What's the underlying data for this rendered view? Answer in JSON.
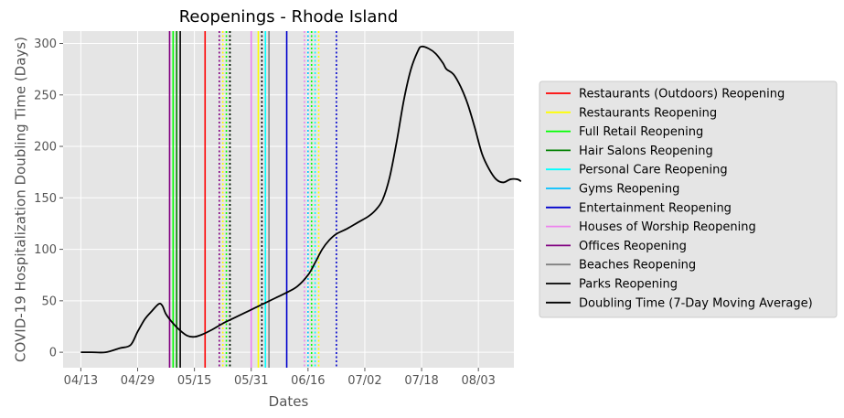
{
  "chart_data": {
    "type": "line",
    "title": "Reopenings - Rhode Island",
    "xlabel": "Dates",
    "ylabel": "COVID-19 Hospitalization Doubling Time (Days)",
    "x_type": "date",
    "xlim": [
      "2020-04-08",
      "2020-08-13"
    ],
    "ylim": [
      -15,
      312
    ],
    "x_ticks": [
      "2020-04-13",
      "2020-04-29",
      "2020-05-15",
      "2020-05-31",
      "2020-06-16",
      "2020-07-02",
      "2020-07-18",
      "2020-08-03"
    ],
    "x_tick_labels": [
      "04/13",
      "04/29",
      "05/15",
      "05/31",
      "06/16",
      "07/02",
      "07/18",
      "08/03"
    ],
    "y_ticks": [
      0,
      50,
      100,
      150,
      200,
      250,
      300
    ],
    "y_tick_labels": [
      "0",
      "50",
      "100",
      "150",
      "200",
      "250",
      "300"
    ],
    "grid": true,
    "legend_position": "right",
    "background_color": "#e5e5e5",
    "series": [
      {
        "name": "Doubling Time (7-Day Moving Average)",
        "color": "#000000",
        "points": [
          [
            "2020-04-13",
            0
          ],
          [
            "2020-04-16",
            0
          ],
          [
            "2020-04-20",
            0
          ],
          [
            "2020-04-24",
            4
          ],
          [
            "2020-04-27",
            7
          ],
          [
            "2020-04-29",
            20
          ],
          [
            "2020-05-01",
            32
          ],
          [
            "2020-05-03",
            40
          ],
          [
            "2020-05-05",
            47
          ],
          [
            "2020-05-06",
            45
          ],
          [
            "2020-05-07",
            37
          ],
          [
            "2020-05-09",
            28
          ],
          [
            "2020-05-11",
            21
          ],
          [
            "2020-05-13",
            16
          ],
          [
            "2020-05-15",
            15
          ],
          [
            "2020-05-17",
            17
          ],
          [
            "2020-05-20",
            22
          ],
          [
            "2020-05-23",
            28
          ],
          [
            "2020-05-26",
            33
          ],
          [
            "2020-05-29",
            38
          ],
          [
            "2020-06-01",
            43
          ],
          [
            "2020-06-04",
            48
          ],
          [
            "2020-06-07",
            53
          ],
          [
            "2020-06-10",
            58
          ],
          [
            "2020-06-13",
            64
          ],
          [
            "2020-06-16",
            75
          ],
          [
            "2020-06-18",
            87
          ],
          [
            "2020-06-20",
            100
          ],
          [
            "2020-06-22",
            109
          ],
          [
            "2020-06-24",
            115
          ],
          [
            "2020-06-27",
            120
          ],
          [
            "2020-06-30",
            126
          ],
          [
            "2020-07-03",
            132
          ],
          [
            "2020-07-05",
            138
          ],
          [
            "2020-07-07",
            148
          ],
          [
            "2020-07-09",
            170
          ],
          [
            "2020-07-11",
            205
          ],
          [
            "2020-07-13",
            245
          ],
          [
            "2020-07-15",
            275
          ],
          [
            "2020-07-17",
            293
          ],
          [
            "2020-07-18",
            297
          ],
          [
            "2020-07-20",
            295
          ],
          [
            "2020-07-22",
            290
          ],
          [
            "2020-07-24",
            281
          ],
          [
            "2020-07-25",
            275
          ],
          [
            "2020-07-27",
            270
          ],
          [
            "2020-07-29",
            258
          ],
          [
            "2020-07-31",
            241
          ],
          [
            "2020-08-02",
            218
          ],
          [
            "2020-08-04",
            193
          ],
          [
            "2020-08-06",
            178
          ],
          [
            "2020-08-08",
            168
          ],
          [
            "2020-08-10",
            165
          ],
          [
            "2020-08-12",
            168
          ],
          [
            "2020-08-14",
            168
          ],
          [
            "2020-08-15",
            166
          ]
        ]
      }
    ],
    "reopenings": [
      {
        "name": "Restaurants (Outdoors) Reopening",
        "color": "#ff0000",
        "dates": [
          "2020-05-18"
        ],
        "dotted_dates": []
      },
      {
        "name": "Restaurants Reopening",
        "color": "#ffff00",
        "dates": [
          "2020-06-02"
        ],
        "dotted_dates": [
          "2020-05-23",
          "2020-06-19"
        ]
      },
      {
        "name": "Full Retail Reopening",
        "color": "#00ff00",
        "dates": [
          "2020-05-09"
        ],
        "dotted_dates": [
          "2020-05-24",
          "2020-06-17"
        ]
      },
      {
        "name": "Hair Salons Reopening",
        "color": "#008000",
        "dates": [
          "2020-05-10"
        ],
        "dotted_dates": [
          "2020-05-25"
        ]
      },
      {
        "name": "Personal Care Reopening",
        "color": "#00ffff",
        "dates": [
          "2020-06-04"
        ],
        "dotted_dates": [
          "2020-06-18"
        ]
      },
      {
        "name": "Gyms Reopening",
        "color": "#00bfff",
        "dates": [],
        "dotted_dates": [
          "2020-06-16"
        ]
      },
      {
        "name": "Entertainment Reopening",
        "color": "#0000cd",
        "dates": [
          "2020-06-10"
        ],
        "dotted_dates": [
          "2020-06-24"
        ]
      },
      {
        "name": "Houses of Worship Reopening",
        "color": "#ee82ee",
        "dates": [
          "2020-05-31"
        ],
        "dotted_dates": [
          "2020-06-15"
        ]
      },
      {
        "name": "Offices Reopening",
        "color": "#800080",
        "dates": [
          "2020-05-08"
        ],
        "dotted_dates": [
          "2020-05-22"
        ]
      },
      {
        "name": "Beaches Reopening",
        "color": "#808080",
        "dates": [
          "2020-06-05"
        ],
        "dotted_dates": []
      },
      {
        "name": "Parks Reopening",
        "color": "#000000",
        "dates": [
          "2020-05-11"
        ],
        "dotted_dates": [
          "2020-05-25",
          "2020-06-03"
        ]
      }
    ],
    "legend": [
      {
        "label": "Restaurants (Outdoors) Reopening",
        "color": "#ff0000"
      },
      {
        "label": "Restaurants Reopening",
        "color": "#ffff00"
      },
      {
        "label": "Full Retail Reopening",
        "color": "#00ff00"
      },
      {
        "label": "Hair Salons Reopening",
        "color": "#008000"
      },
      {
        "label": "Personal Care Reopening",
        "color": "#00ffff"
      },
      {
        "label": "Gyms Reopening",
        "color": "#00bfff"
      },
      {
        "label": "Entertainment Reopening",
        "color": "#0000cd"
      },
      {
        "label": "Houses of Worship Reopening",
        "color": "#ee82ee"
      },
      {
        "label": "Offices Reopening",
        "color": "#800080"
      },
      {
        "label": "Beaches Reopening",
        "color": "#808080"
      },
      {
        "label": "Parks Reopening",
        "color": "#000000"
      },
      {
        "label": "Doubling Time (7-Day Moving Average)",
        "color": "#000000"
      }
    ]
  }
}
